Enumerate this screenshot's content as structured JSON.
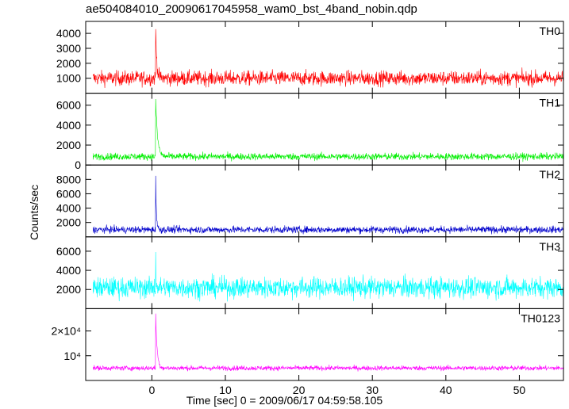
{
  "chart_data": {
    "type": "line",
    "title": "ae504084010_20090617045958_wam0_bst_4band_nobin.qdp",
    "xlabel": "Time [sec] 0 = 2009/06/17 04:59:58.105",
    "ylabel": "Counts/sec",
    "xlim": [
      -9,
      56
    ],
    "xticks": [
      0,
      10,
      20,
      30,
      40,
      50
    ],
    "x_start": -8,
    "x_end": 56,
    "burst_time": 0.5,
    "grid": false,
    "legend": "none",
    "panels": [
      {
        "name": "TH0",
        "color": "#ff0000",
        "ylim": [
          0,
          4800
        ],
        "yticks": [
          1000,
          2000,
          3000,
          4000
        ],
        "ytick_labels": [
          "1000",
          "2000",
          "3000",
          "4000"
        ],
        "baseline": 1000,
        "noise": 250,
        "peak": 4800,
        "decay": 0.15
      },
      {
        "name": "TH1",
        "color": "#00ee00",
        "ylim": [
          0,
          7200
        ],
        "yticks": [
          0,
          2000,
          4000,
          6000
        ],
        "ytick_labels": [
          "0",
          "2000",
          "4000",
          "6000"
        ],
        "baseline": 850,
        "noise": 180,
        "peak": 7100,
        "decay": 0.25
      },
      {
        "name": "TH2",
        "color": "#0000cc",
        "ylim": [
          0,
          10000
        ],
        "yticks": [
          2000,
          4000,
          6000,
          8000
        ],
        "ytick_labels": [
          "2000",
          "4000",
          "6000",
          "8000"
        ],
        "baseline": 1000,
        "noise": 250,
        "peak": 9800,
        "decay": 0.1
      },
      {
        "name": "TH3",
        "color": "#00ffff",
        "ylim": [
          0,
          7500
        ],
        "yticks": [
          2000,
          4000,
          6000
        ],
        "ytick_labels": [
          "2000",
          "4000",
          "6000"
        ],
        "baseline": 2200,
        "noise": 550,
        "peak": 7300,
        "decay": 0.05
      },
      {
        "name": "TH0123",
        "color": "#ff00ff",
        "ylim": [
          0,
          29000
        ],
        "yticks": [
          10000,
          20000
        ],
        "ytick_labels": [
          "10⁴",
          "2×10⁴"
        ],
        "baseline": 5000,
        "noise": 500,
        "peak": 28500,
        "decay": 0.2
      }
    ]
  }
}
